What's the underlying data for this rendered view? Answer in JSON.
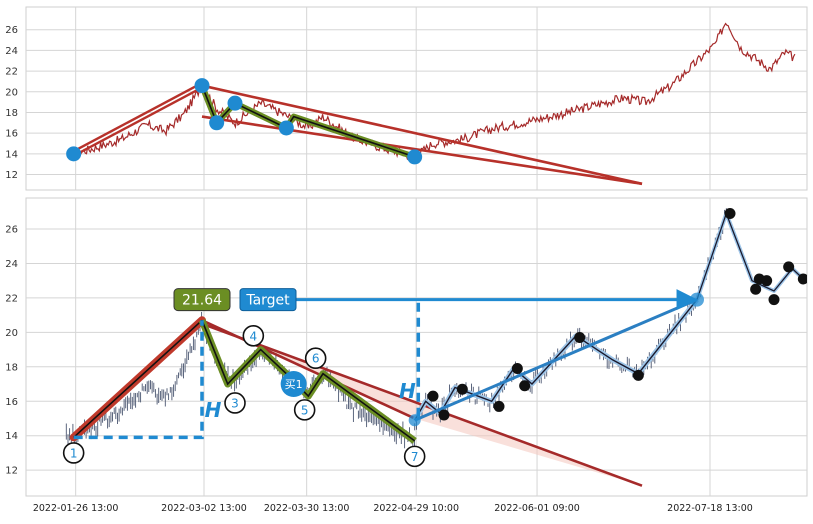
{
  "chart_data": [
    {
      "panel": "top",
      "type": "line",
      "ylim": [
        10.5,
        28.2
      ],
      "yticks": [
        12,
        14,
        16,
        18,
        20,
        22,
        24,
        26
      ],
      "xlim_days": [
        -13,
        200
      ],
      "x_grid_dates": [
        "2022-01-26 13:00",
        "2022-03-02 13:00",
        "2022-03-30 13:00",
        "2022-04-29 10:00",
        "2022-06-01 09:00",
        "2022-07-18 13:00"
      ],
      "grid": true,
      "colors": {
        "price": "#a52a2a",
        "trend": "#b7312a",
        "zigzag": "#6b8e23",
        "point": "#1f8ad1"
      },
      "price_path": [
        [
          "2022-01-26",
          14.0
        ],
        [
          "2022-02-01",
          14.6
        ],
        [
          "2022-02-08",
          15.4
        ],
        [
          "2022-02-15",
          16.8
        ],
        [
          "2022-02-20",
          16.2
        ],
        [
          "2022-02-25",
          17.8
        ],
        [
          "2022-03-02",
          20.6
        ],
        [
          "2022-03-06",
          18.4
        ],
        [
          "2022-03-11",
          17.0
        ],
        [
          "2022-03-18",
          18.9
        ],
        [
          "2022-03-25",
          17.7
        ],
        [
          "2022-03-31",
          16.5
        ],
        [
          "2022-04-04",
          17.6
        ],
        [
          "2022-04-12",
          15.6
        ],
        [
          "2022-04-20",
          14.6
        ],
        [
          "2022-04-29",
          13.7
        ],
        [
          "2022-05-04",
          15.0
        ],
        [
          "2022-05-12",
          15.4
        ],
        [
          "2022-05-20",
          16.4
        ],
        [
          "2022-05-28",
          17.0
        ],
        [
          "2022-06-05",
          17.6
        ],
        [
          "2022-06-12",
          18.2
        ],
        [
          "2022-06-18",
          18.8
        ],
        [
          "2022-06-25",
          19.4
        ],
        [
          "2022-07-01",
          19.0
        ],
        [
          "2022-07-08",
          20.6
        ],
        [
          "2022-07-14",
          22.6
        ],
        [
          "2022-07-20",
          24.6
        ],
        [
          "2022-07-23",
          26.9
        ],
        [
          "2022-07-27",
          24.2
        ],
        [
          "2022-07-31",
          23.2
        ],
        [
          "2022-08-04",
          22.2
        ],
        [
          "2022-08-08",
          23.8
        ],
        [
          "2022-08-11",
          23.2
        ]
      ],
      "zigzag_points": [
        [
          "2022-03-02",
          20.6
        ],
        [
          "2022-03-06",
          17.0
        ],
        [
          "2022-03-11",
          18.9
        ],
        [
          "2022-03-25",
          16.5
        ],
        [
          "2022-03-27",
          17.6
        ],
        [
          "2022-04-29",
          13.7
        ]
      ],
      "start_point": [
        "2022-01-26",
        14.0
      ],
      "trend_lines": [
        [
          [
            "2022-03-02",
            20.6
          ],
          [
            "2022-06-30",
            11.1
          ]
        ],
        [
          [
            "2022-03-02",
            17.6
          ],
          [
            "2022-06-30",
            11.1
          ]
        ]
      ]
    },
    {
      "panel": "bottom",
      "type": "line",
      "ylim": [
        10.5,
        27.8
      ],
      "yticks": [
        12,
        14,
        16,
        18,
        20,
        22,
        24,
        26
      ],
      "x_tick_labels": [
        "2022-01-26 13:00",
        "2022-03-02 13:00",
        "2022-03-30 13:00",
        "2022-04-29 10:00",
        "2022-06-01 09:00",
        "2022-07-18 13:00"
      ],
      "grid": true,
      "colors": {
        "price": "#4a5670",
        "rise": "#c0392b",
        "zigzag": "#6b8e23",
        "wedge": "#a52a2a",
        "breakout": "#1f8ad1",
        "marker": "#111111",
        "label": "#1f8ad1"
      },
      "rise_line": [
        [
          "2022-01-26",
          13.9
        ],
        [
          "2022-03-02",
          20.7
        ]
      ],
      "zigzag_points": [
        [
          "2022-03-02",
          20.7
        ],
        [
          "2022-03-09",
          17.0
        ],
        [
          "2022-03-18",
          19.0
        ],
        [
          "2022-03-25",
          17.6
        ],
        [
          "2022-03-31",
          16.3
        ],
        [
          "2022-04-04",
          17.6
        ],
        [
          "2022-04-29",
          13.7
        ]
      ],
      "wedge_upper": [
        [
          "2022-03-02",
          20.7
        ],
        [
          "2022-04-29",
          15.0
        ]
      ],
      "wedge_lower": [
        [
          "2022-03-02",
          20.5
        ],
        [
          "2022-06-30",
          11.1
        ]
      ],
      "breakout_path": [
        [
          "2022-04-29",
          14.9
        ],
        [
          "2022-05-02",
          16.0
        ],
        [
          "2022-05-06",
          15.3
        ],
        [
          "2022-05-10",
          16.8
        ],
        [
          "2022-05-20",
          16.0
        ],
        [
          "2022-05-26",
          17.9
        ],
        [
          "2022-05-31",
          17.0
        ],
        [
          "2022-06-12",
          19.8
        ],
        [
          "2022-06-22",
          18.4
        ],
        [
          "2022-06-29",
          17.6
        ],
        [
          "2022-07-15",
          21.9
        ]
      ],
      "post_path": [
        [
          "2022-07-15",
          21.9
        ],
        [
          "2022-07-23",
          26.9
        ],
        [
          "2022-07-30",
          23.0
        ],
        [
          "2022-08-05",
          22.4
        ],
        [
          "2022-08-10",
          23.7
        ],
        [
          "2022-08-13",
          23.1
        ]
      ],
      "black_markers": [
        [
          "2022-05-04",
          16.3
        ],
        [
          "2022-05-07",
          15.2
        ],
        [
          "2022-05-12",
          16.7
        ],
        [
          "2022-05-22",
          15.7
        ],
        [
          "2022-05-27",
          17.9
        ],
        [
          "2022-05-29",
          16.9
        ],
        [
          "2022-06-13",
          19.7
        ],
        [
          "2022-06-29",
          17.5
        ],
        [
          "2022-07-24",
          26.9
        ],
        [
          "2022-07-31",
          22.5
        ],
        [
          "2022-08-01",
          23.1
        ],
        [
          "2022-08-03",
          23.0
        ],
        [
          "2022-08-05",
          21.9
        ],
        [
          "2022-08-09",
          23.8
        ],
        [
          "2022-08-13",
          23.1
        ]
      ],
      "wave_labels": [
        {
          "label": "1",
          "date": "2022-01-26",
          "y": 13.0
        },
        {
          "label": "3",
          "date": "2022-03-11",
          "y": 15.9
        },
        {
          "label": "4",
          "date": "2022-03-16",
          "y": 19.8
        },
        {
          "label": "5",
          "date": "2022-03-30",
          "y": 15.5
        },
        {
          "label": "6",
          "date": "2022-04-02",
          "y": 18.5
        },
        {
          "label": "7",
          "date": "2022-04-29",
          "y": 12.8
        }
      ],
      "buy_marker": {
        "label": "买1",
        "date": "2022-03-27",
        "y": 17.0
      },
      "price_badge": {
        "value": "21.64",
        "date": "2022-03-02",
        "y": 21.9
      },
      "target_badge": {
        "label": "Target",
        "date": "2022-03-20",
        "y": 21.9
      },
      "target_arrow": [
        [
          "2022-03-24",
          21.9
        ],
        [
          "2022-07-14",
          21.9
        ]
      ],
      "height_marks": [
        {
          "label": "H",
          "date": "2022-03-05",
          "y": 15.1
        },
        {
          "label": "H",
          "date": "2022-04-27",
          "y": 16.2
        }
      ],
      "h_dashed": [
        [
          [
            "2022-01-26",
            13.9
          ],
          [
            "2022-03-02",
            13.9
          ],
          [
            "2022-03-02",
            20.7
          ]
        ],
        [
          [
            "2022-04-30",
            15.1
          ],
          [
            "2022-04-30",
            21.9
          ]
        ]
      ]
    }
  ]
}
